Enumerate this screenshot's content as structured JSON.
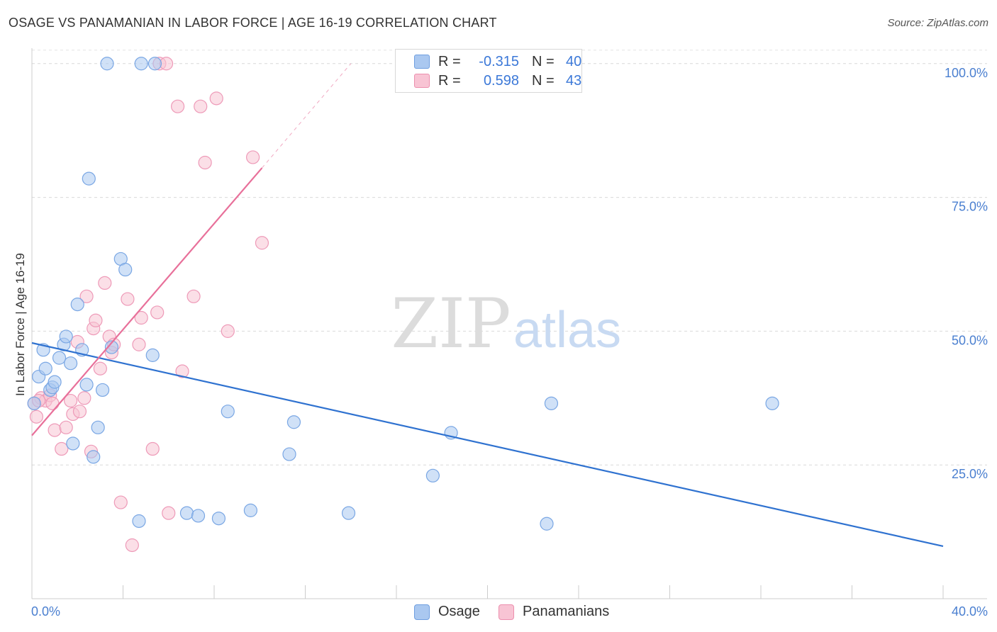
{
  "header": {
    "title": "OSAGE VS PANAMANIAN IN LABOR FORCE | AGE 16-19 CORRELATION CHART",
    "source": "Source: ZipAtlas.com"
  },
  "legend_top": {
    "rows": [
      {
        "r_label": "R =",
        "r_value": "-0.315",
        "n_label": "N =",
        "n_value": "40",
        "color": "#aac8f0",
        "border": "#6f9fe0"
      },
      {
        "r_label": "R =",
        "r_value": "0.598",
        "n_label": "N =",
        "n_value": "43",
        "color": "#f8c4d4",
        "border": "#ec8fae"
      }
    ]
  },
  "legend_bottom": {
    "items": [
      {
        "label": "Osage",
        "color": "#aac8f0",
        "border": "#6f9fe0"
      },
      {
        "label": "Panamanians",
        "color": "#f8c4d4",
        "border": "#ec8fae"
      }
    ]
  },
  "watermark": {
    "zip": "ZIP",
    "atlas": "atlas"
  },
  "chart_data": {
    "type": "scatter",
    "ylabel": "In Labor Force | Age 16-19",
    "xlim": [
      0,
      40
    ],
    "ylim": [
      0,
      105
    ],
    "x_ticks": [
      "0.0%",
      "40.0%"
    ],
    "y_ticks": [
      {
        "value": 25,
        "label": "25.0%"
      },
      {
        "value": 50,
        "label": "50.0%"
      },
      {
        "value": 75,
        "label": "75.0%"
      },
      {
        "value": 100,
        "label": "100.0%"
      }
    ],
    "grid": true,
    "series": [
      {
        "name": "Osage",
        "color": "#aac8f0",
        "line_color": "#2f72d0",
        "trend": {
          "x0": 0,
          "y0": 47.8,
          "x1": 40,
          "y1": 9.8
        },
        "points": [
          [
            0.1,
            36.5
          ],
          [
            0.3,
            41.5
          ],
          [
            0.5,
            46.5
          ],
          [
            0.6,
            43.0
          ],
          [
            0.8,
            39.0
          ],
          [
            0.9,
            39.5
          ],
          [
            1.0,
            40.5
          ],
          [
            1.2,
            45.0
          ],
          [
            1.4,
            47.5
          ],
          [
            1.5,
            49.0
          ],
          [
            1.7,
            44.0
          ],
          [
            1.8,
            29.0
          ],
          [
            2.0,
            55.0
          ],
          [
            2.2,
            46.5
          ],
          [
            2.4,
            40.0
          ],
          [
            2.5,
            78.5
          ],
          [
            2.7,
            26.5
          ],
          [
            2.9,
            32.0
          ],
          [
            3.1,
            39.0
          ],
          [
            3.3,
            100.0
          ],
          [
            3.5,
            47.0
          ],
          [
            3.9,
            63.5
          ],
          [
            4.1,
            61.5
          ],
          [
            4.7,
            14.5
          ],
          [
            4.8,
            100.0
          ],
          [
            5.3,
            45.5
          ],
          [
            5.4,
            100.0
          ],
          [
            6.8,
            16.0
          ],
          [
            7.3,
            15.5
          ],
          [
            8.2,
            15.0
          ],
          [
            8.6,
            35.0
          ],
          [
            9.6,
            16.5
          ],
          [
            11.5,
            33.0
          ],
          [
            11.3,
            27.0
          ],
          [
            13.9,
            16.0
          ],
          [
            17.6,
            23.0
          ],
          [
            18.4,
            31.0
          ],
          [
            22.8,
            36.5
          ],
          [
            22.6,
            14.0
          ],
          [
            32.5,
            36.5
          ]
        ]
      },
      {
        "name": "Panamanians",
        "color": "#f8c4d4",
        "line_color": "#e8709a",
        "trend": {
          "x0": 0,
          "y0": 30.5,
          "x1": 10.1,
          "y1": 80.5
        },
        "trend_ext": {
          "x0": 10.1,
          "y0": 80.5,
          "x1": 14.0,
          "y1": 100.0
        },
        "points": [
          [
            0.1,
            36.5
          ],
          [
            0.2,
            34.0
          ],
          [
            0.4,
            37.5
          ],
          [
            0.6,
            37.0
          ],
          [
            0.8,
            38.0
          ],
          [
            0.9,
            36.5
          ],
          [
            1.0,
            31.5
          ],
          [
            1.3,
            28.0
          ],
          [
            1.5,
            32.0
          ],
          [
            1.7,
            37.0
          ],
          [
            1.8,
            34.5
          ],
          [
            2.0,
            48.0
          ],
          [
            2.1,
            35.0
          ],
          [
            2.3,
            37.5
          ],
          [
            2.4,
            56.5
          ],
          [
            2.6,
            27.5
          ],
          [
            2.7,
            50.5
          ],
          [
            2.8,
            52.0
          ],
          [
            3.0,
            43.0
          ],
          [
            3.2,
            59.0
          ],
          [
            3.4,
            49.0
          ],
          [
            3.5,
            46.0
          ],
          [
            3.6,
            47.5
          ],
          [
            3.9,
            18.0
          ],
          [
            4.2,
            56.0
          ],
          [
            4.4,
            10.0
          ],
          [
            4.7,
            47.5
          ],
          [
            4.8,
            52.5
          ],
          [
            5.3,
            28.0
          ],
          [
            5.5,
            53.5
          ],
          [
            5.6,
            100.0
          ],
          [
            5.9,
            100.0
          ],
          [
            6.0,
            16.0
          ],
          [
            6.4,
            92.0
          ],
          [
            6.6,
            42.5
          ],
          [
            7.1,
            56.5
          ],
          [
            7.4,
            92.0
          ],
          [
            7.6,
            81.5
          ],
          [
            8.1,
            93.5
          ],
          [
            8.6,
            50.0
          ],
          [
            9.7,
            82.5
          ],
          [
            10.1,
            66.5
          ],
          [
            0.3,
            37.0
          ]
        ]
      }
    ]
  }
}
